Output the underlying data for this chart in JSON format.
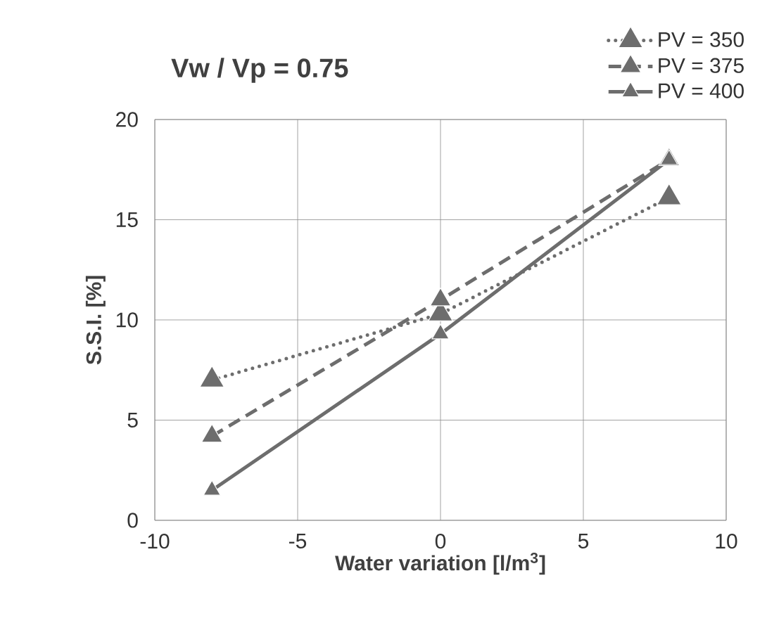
{
  "chart_data": {
    "type": "line",
    "title": "Vw / Vp = 0.75",
    "xlabel": "Water variation [l/m$^{3}$]",
    "ylabel": "S.S.I. [%]",
    "x": [
      -8,
      0,
      8
    ],
    "series": [
      {
        "name": "PV = 350",
        "color": "#6d6d6d",
        "line_style": "dotted",
        "values": [
          7.0,
          10.3,
          16.1
        ]
      },
      {
        "name": "PV = 375",
        "color": "#6d6d6d",
        "line_style": "dashed",
        "values": [
          4.2,
          11.0,
          18.0
        ]
      },
      {
        "name": "PV = 400",
        "color": "#6d6d6d",
        "line_style": "solid",
        "values": [
          1.5,
          9.3,
          18.0
        ]
      }
    ],
    "xlim": [
      -10,
      10
    ],
    "xticks": [
      -10,
      -5,
      0,
      5,
      10
    ],
    "ylim": [
      0,
      20
    ],
    "yticks": [
      0,
      5,
      10,
      15,
      20
    ],
    "grid": true,
    "legend": "top right",
    "marker": "triangle"
  }
}
